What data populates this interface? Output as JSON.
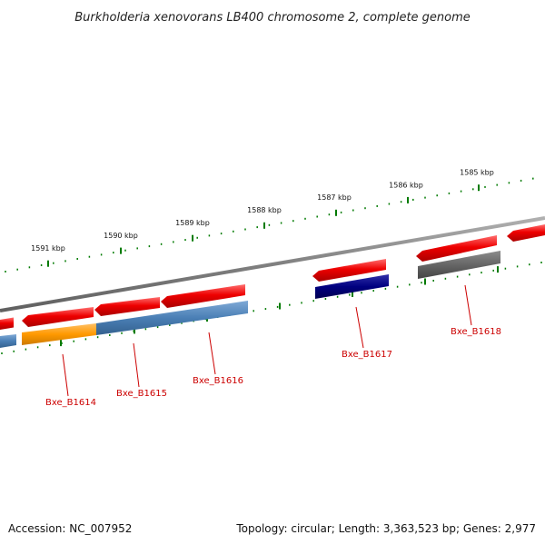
{
  "title": "Burkholderia xenovorans LB400 chromosome 2, complete genome",
  "footer": {
    "accession": "Accession: NC_007952",
    "summary": "Topology: circular; Length: 3,363,523 bp; Genes: 2,977"
  },
  "colors": {
    "backbone": "#8a8a8a",
    "tick": "#007a00",
    "forward_gene": "#ee0000",
    "label": "#cc0000",
    "steelblue": "#4a7fb5",
    "orange": "#ff9900",
    "navy": "#000080",
    "gray": "#666666"
  },
  "scale": {
    "labels": [
      "1591 kbp",
      "1590 kbp",
      "1589 kbp",
      "1588 kbp",
      "1587 kbp",
      "1586 kbp",
      "1585 kbp"
    ]
  },
  "genes": [
    {
      "label": "Bxe_B1614"
    },
    {
      "label": "Bxe_B1615"
    },
    {
      "label": "Bxe_B1616"
    },
    {
      "label": "Bxe_B1617"
    },
    {
      "label": "Bxe_B1618"
    }
  ]
}
